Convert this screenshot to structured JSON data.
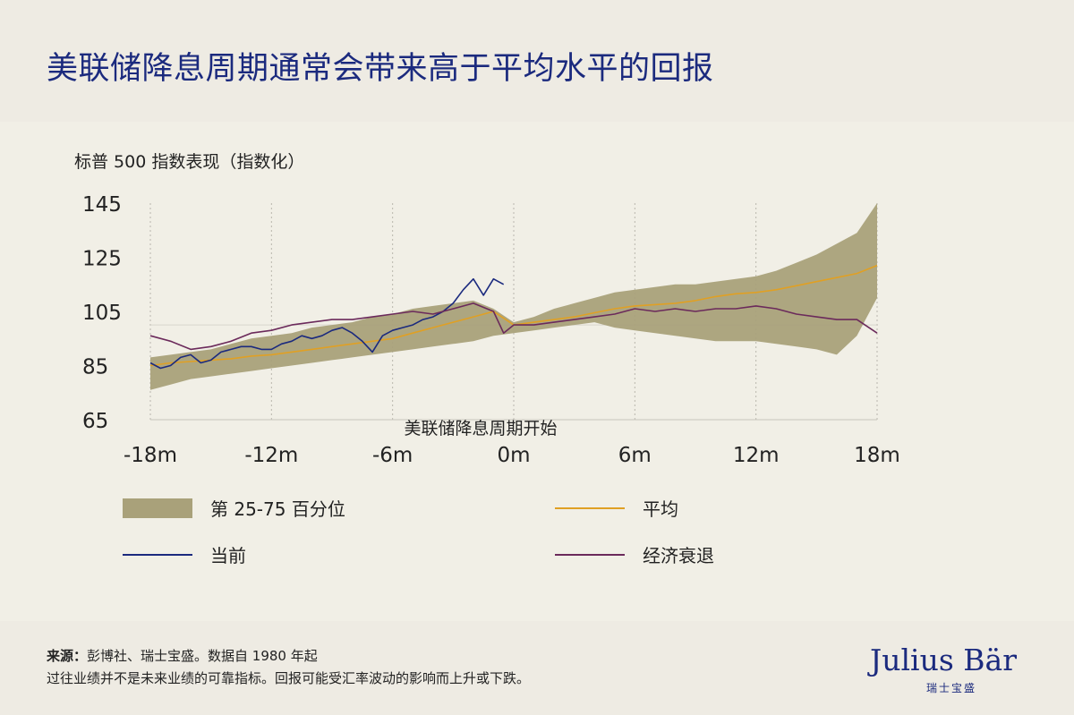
{
  "title": "美联储降息周期通常会带来高于平均水平的回报",
  "chart_data": {
    "type": "line",
    "ylabel": "标普 500 指数表现（指数化）",
    "xlabel": "",
    "yticks": [
      "145",
      "125",
      "105",
      "85",
      "65"
    ],
    "ytick_values": [
      145,
      125,
      105,
      85,
      65
    ],
    "xticks": [
      "-18m",
      "-12m",
      "-6m",
      "0m",
      "6m",
      "12m",
      "18m"
    ],
    "xtick_values": [
      -18,
      -12,
      -6,
      0,
      6,
      12,
      18
    ],
    "ylim": [
      65,
      145
    ],
    "xlim": [
      -18,
      18
    ],
    "grid": "vertical dotted",
    "annotation": "美联储降息周期开始",
    "band": {
      "name": "第 25-75 百分位",
      "x": [
        -18,
        -17,
        -16,
        -15,
        -14,
        -13,
        -12,
        -11,
        -10,
        -9,
        -8,
        -7,
        -6,
        -5,
        -4,
        -3,
        -2,
        -1,
        0,
        1,
        2,
        3,
        4,
        5,
        6,
        7,
        8,
        9,
        10,
        11,
        12,
        13,
        14,
        15,
        16,
        17,
        18
      ],
      "lower": [
        76,
        78,
        80,
        81,
        82,
        83,
        84,
        85,
        86,
        87,
        88,
        89,
        90,
        91,
        92,
        93,
        94,
        96,
        97,
        98,
        99,
        100,
        101,
        99,
        98,
        97,
        96,
        95,
        94,
        94,
        94,
        93,
        92,
        91,
        89,
        96,
        110
      ],
      "upper": [
        88,
        89,
        90,
        91,
        93,
        95,
        96,
        97,
        99,
        100,
        101,
        103,
        104,
        106,
        107,
        108,
        109,
        106,
        101,
        103,
        106,
        108,
        110,
        112,
        113,
        114,
        115,
        115,
        116,
        117,
        118,
        120,
        123,
        126,
        130,
        134,
        145
      ]
    },
    "series": [
      {
        "name": "平均",
        "color": "#e0a024",
        "x": [
          -18,
          -17,
          -16,
          -15,
          -14,
          -13,
          -12,
          -11,
          -10,
          -9,
          -8,
          -7,
          -6,
          -5,
          -4,
          -3,
          -2,
          -1,
          0,
          1,
          2,
          3,
          4,
          5,
          6,
          7,
          8,
          9,
          10,
          11,
          12,
          13,
          14,
          15,
          16,
          17,
          18
        ],
        "values": [
          85,
          86,
          86.5,
          87,
          87.5,
          88.5,
          89,
          90,
          91,
          92,
          93,
          94,
          95,
          97,
          99,
          101,
          103,
          105,
          100,
          101,
          102,
          103,
          104.5,
          106,
          107,
          107.5,
          108,
          109,
          110.5,
          111.5,
          112,
          113,
          114.5,
          116,
          117.5,
          119,
          122
        ]
      },
      {
        "name": "当前",
        "color": "#1b2a7e",
        "x": [
          -18,
          -17.5,
          -17,
          -16.5,
          -16,
          -15.5,
          -15,
          -14.5,
          -14,
          -13.5,
          -13,
          -12.5,
          -12,
          -11.5,
          -11,
          -10.5,
          -10,
          -9.5,
          -9,
          -8.5,
          -8,
          -7.5,
          -7,
          -6.5,
          -6,
          -5.5,
          -5,
          -4.5,
          -4,
          -3.5,
          -3,
          -2.5,
          -2,
          -1.5,
          -1,
          -0.5
        ],
        "values": [
          86,
          84,
          85,
          88,
          89,
          86,
          87,
          90,
          91,
          92,
          92,
          91,
          91,
          93,
          94,
          96,
          95,
          96,
          98,
          99,
          97,
          94,
          90,
          96,
          98,
          99,
          100,
          102,
          103,
          105,
          108,
          113,
          117,
          111,
          117,
          115
        ]
      },
      {
        "name": "经济衰退",
        "color": "#6b2a5b",
        "x": [
          -18,
          -17,
          -16,
          -15,
          -14,
          -13,
          -12,
          -11,
          -10,
          -9,
          -8,
          -7,
          -6,
          -5,
          -4,
          -3,
          -2,
          -1,
          -0.5,
          0,
          1,
          2,
          3,
          4,
          5,
          6,
          7,
          8,
          9,
          10,
          11,
          12,
          13,
          14,
          15,
          16,
          17,
          18
        ],
        "values": [
          96,
          94,
          91,
          92,
          94,
          97,
          98,
          100,
          101,
          102,
          102,
          103,
          104,
          105,
          104,
          106,
          108,
          105,
          97,
          100,
          100,
          101,
          102,
          103,
          104,
          106,
          105,
          106,
          105,
          106,
          106,
          107,
          106,
          104,
          103,
          102,
          102,
          97
        ]
      }
    ],
    "legend": [
      {
        "label": "第 25-75 百分位",
        "kind": "band",
        "color": "#a9a17a"
      },
      {
        "label": "平均",
        "kind": "line",
        "color": "#e0a024"
      },
      {
        "label": "当前",
        "kind": "line",
        "color": "#1b2a7e"
      },
      {
        "label": "经济衰退",
        "kind": "line",
        "color": "#6b2a5b"
      }
    ]
  },
  "footer": {
    "source_label": "来源：",
    "source_text": "彭博社、瑞士宝盛。数据自 1980 年起",
    "disclaimer": "过往业绩并不是未来业绩的可靠指标。回报可能受汇率波动的影响而上升或下跌。"
  },
  "logo": {
    "name": "Julius Bär",
    "sub": "瑞士宝盛"
  }
}
